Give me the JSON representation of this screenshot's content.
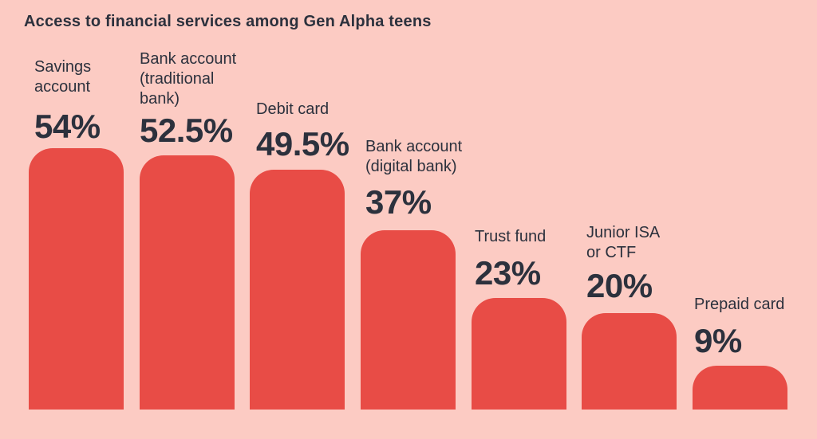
{
  "title": "Access to financial services among Gen Alpha teens",
  "colors": {
    "background": "#fccbc3",
    "bar": "#e84c46",
    "text": "#2c313d"
  },
  "chart_data": {
    "type": "bar",
    "title": "Access to financial services among Gen Alpha teens",
    "orientation": "vertical",
    "unit": "%",
    "grid": false,
    "legend": "none",
    "axes_shown": false,
    "ylim": [
      0,
      60
    ],
    "categories": [
      "Savings account",
      "Bank account (traditional bank)",
      "Debit card",
      "Bank account (digital bank)",
      "Trust fund",
      "Junior ISA or CTF",
      "Prepaid card"
    ],
    "label_display": [
      "Savings\naccount",
      "Bank account\n(traditional\nbank)",
      "Debit card",
      "Bank account\n(digital bank)",
      "Trust fund",
      "Junior ISA\nor CTF",
      "Prepaid card"
    ],
    "values": [
      54,
      52.5,
      49.5,
      37,
      23,
      20,
      9
    ],
    "value_labels": [
      "54%",
      "52.5%",
      "49.5%",
      "37%",
      "23%",
      "20%",
      "9%"
    ]
  }
}
